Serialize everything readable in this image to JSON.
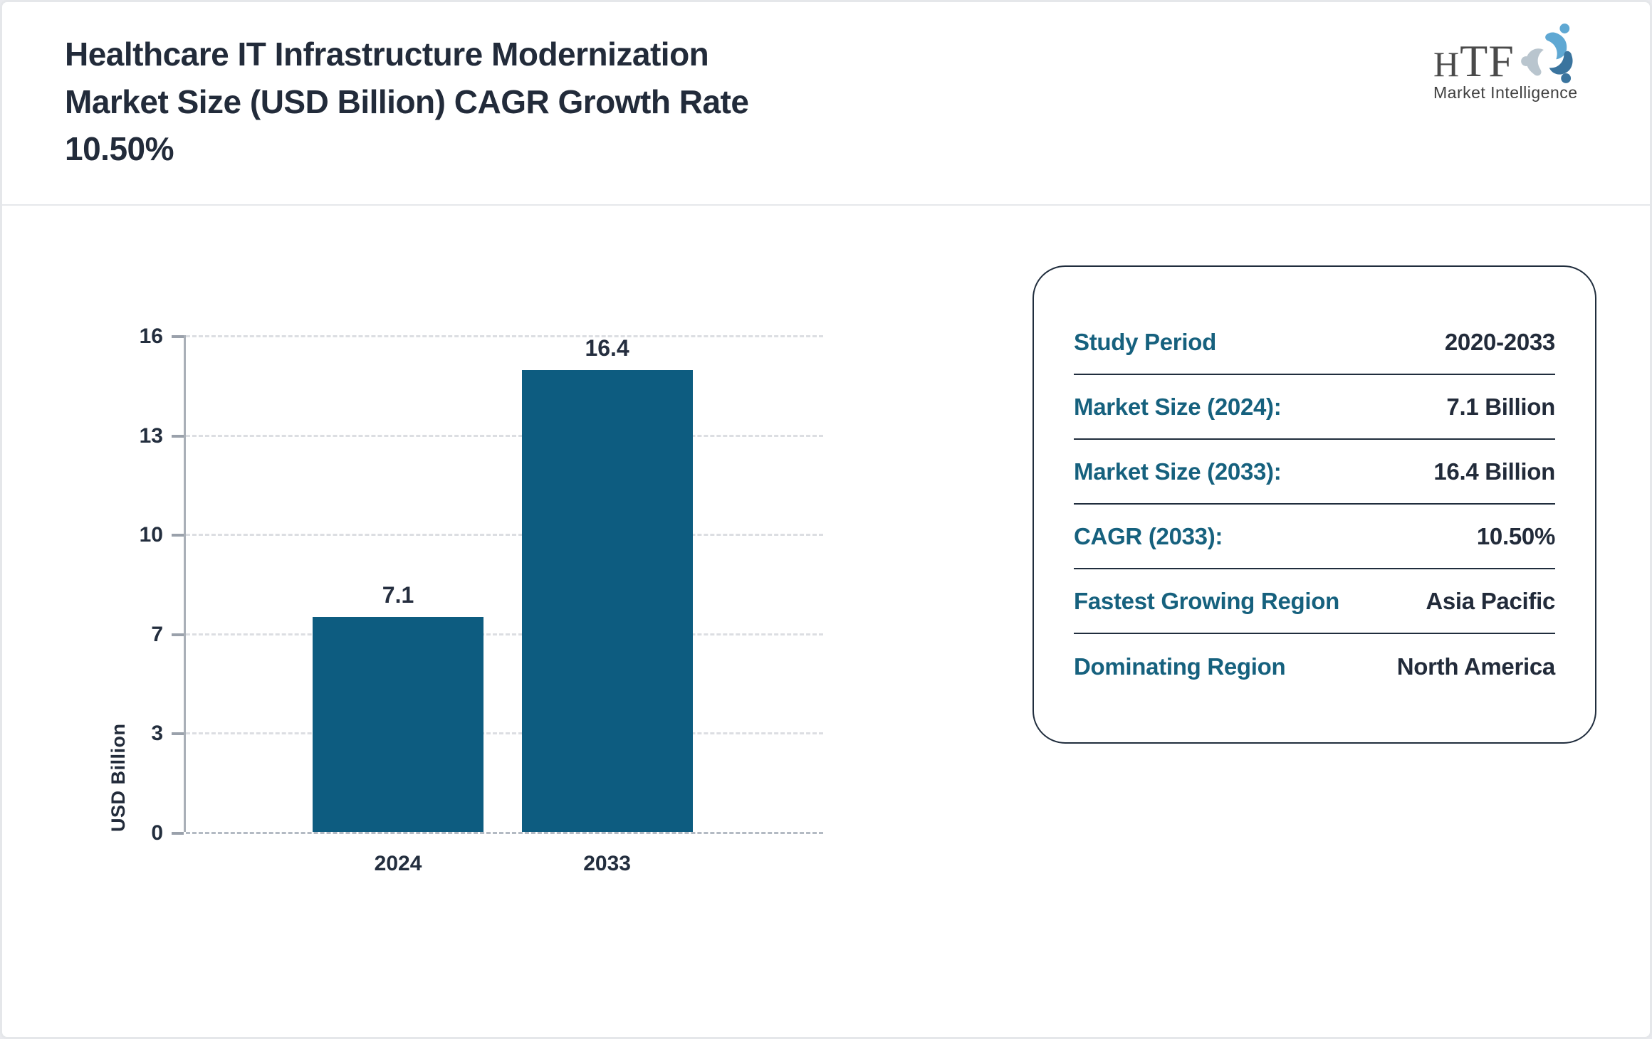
{
  "colors": {
    "bar": "#0d5c80",
    "accent_teal": "#16617e",
    "dark_navy": "#222b3a",
    "axis_gray": "#9aa1ab",
    "grid_gray": "#dcdee2",
    "page_border_gray": "#e5e7ea"
  },
  "header": {
    "title": "Healthcare IT Infrastructure Modernization Market Size (USD Billion) CAGR Growth Rate 10.50%",
    "title_lines": [
      "Healthcare IT Infrastructure Modernization",
      "Market Size (USD Billion) CAGR Growth Rate",
      "10.50%"
    ]
  },
  "logo": {
    "name": "HTF Market Intelligence logo",
    "text": "HTF",
    "text_h": "H",
    "text_tf": "TF",
    "subtitle": "Market Intelligence"
  },
  "chart_data": {
    "type": "bar",
    "categories": [
      "2024",
      "2033"
    ],
    "values": [
      7.1,
      16.4
    ],
    "value_labels": [
      "7.1",
      "16.4"
    ],
    "title": "Healthcare IT Infrastructure Modernization Market Size (USD Billion)",
    "xlabel": "",
    "ylabel": "USD Billion",
    "ylim": [
      0,
      16.4
    ],
    "yticks": [
      0,
      3.28,
      6.56,
      9.84,
      13.12,
      16.4
    ],
    "ytick_labels_top_to_bottom": [
      "16",
      "13",
      "10",
      "7",
      "3",
      "0"
    ],
    "grid": "horizontal dashed, light gray",
    "legend": "none",
    "bar_color": "#0d5c80"
  },
  "info_card": {
    "rows": [
      {
        "label": "Study Period",
        "value": "2020-2033"
      },
      {
        "label": "Market Size (2024):",
        "value": "7.1 Billion"
      },
      {
        "label": "Market Size (2033):",
        "value": "16.4 Billion"
      },
      {
        "label": "CAGR (2033):",
        "value": "10.50%"
      },
      {
        "label": "Fastest Growing Region",
        "value": "Asia Pacific"
      },
      {
        "label": "Dominating Region",
        "value": "North America"
      }
    ]
  }
}
